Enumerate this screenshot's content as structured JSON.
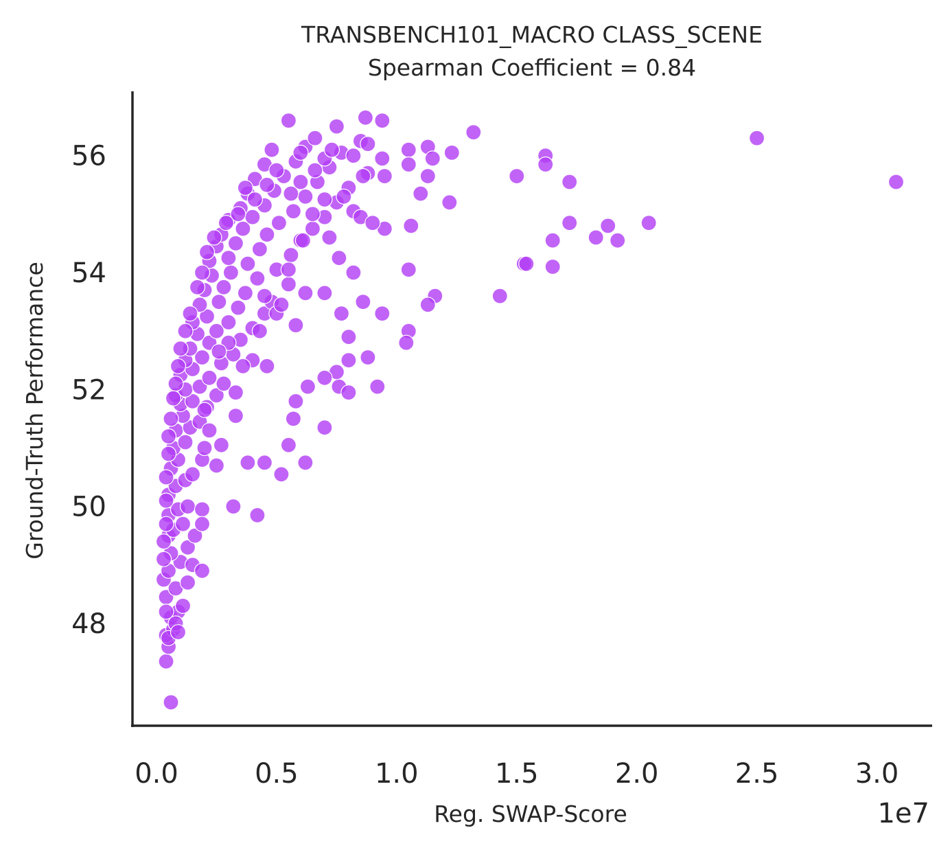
{
  "chart_data": {
    "type": "scatter",
    "title": "TRANSBENCH101_MACRO CLASS_SCENE",
    "subtitle": "Spearman Coefficient = 0.84",
    "xlabel": "Reg. SWAP-Score",
    "ylabel": "Ground-Truth Performance",
    "x_offset_label": "1e7",
    "x_ticks": [
      0.0,
      0.5,
      1.0,
      1.5,
      2.0,
      2.5,
      3.0
    ],
    "x_tick_labels": [
      "0.0",
      "0.5",
      "1.0",
      "1.5",
      "2.0",
      "2.5",
      "3.0"
    ],
    "y_ticks": [
      48,
      50,
      52,
      54,
      56
    ],
    "y_tick_labels": [
      "48",
      "50",
      "52",
      "54",
      "56"
    ],
    "xlim": [
      -0.1,
      3.23
    ],
    "ylim": [
      46.25,
      57.1
    ],
    "grid": false,
    "colors": {
      "point": "#b13cf5",
      "axis": "#262626"
    },
    "points": [
      [
        0.06,
        46.65
      ],
      [
        0.04,
        47.35
      ],
      [
        0.05,
        47.6
      ],
      [
        0.04,
        47.8
      ],
      [
        0.07,
        47.9
      ],
      [
        0.06,
        48.1
      ],
      [
        0.09,
        48.2
      ],
      [
        0.04,
        48.45
      ],
      [
        0.08,
        48.6
      ],
      [
        0.03,
        48.75
      ],
      [
        0.05,
        48.9
      ],
      [
        0.1,
        49.05
      ],
      [
        0.06,
        49.2
      ],
      [
        0.13,
        49.3
      ],
      [
        0.05,
        49.5
      ],
      [
        0.07,
        49.6
      ],
      [
        0.11,
        49.7
      ],
      [
        0.05,
        49.85
      ],
      [
        0.09,
        49.95
      ],
      [
        0.13,
        50.0
      ],
      [
        0.05,
        50.2
      ],
      [
        0.08,
        50.35
      ],
      [
        0.12,
        50.45
      ],
      [
        0.06,
        50.65
      ],
      [
        0.15,
        50.55
      ],
      [
        0.09,
        50.8
      ],
      [
        0.19,
        50.8
      ],
      [
        0.07,
        51.0
      ],
      [
        0.12,
        51.1
      ],
      [
        0.2,
        51.0
      ],
      [
        0.08,
        51.3
      ],
      [
        0.14,
        51.35
      ],
      [
        0.11,
        51.55
      ],
      [
        0.18,
        51.45
      ],
      [
        0.22,
        51.3
      ],
      [
        0.1,
        51.75
      ],
      [
        0.15,
        51.8
      ],
      [
        0.08,
        51.9
      ],
      [
        0.21,
        51.7
      ],
      [
        0.12,
        52.0
      ],
      [
        0.18,
        52.05
      ],
      [
        0.25,
        51.9
      ],
      [
        0.1,
        52.25
      ],
      [
        0.15,
        52.35
      ],
      [
        0.22,
        52.2
      ],
      [
        0.28,
        52.1
      ],
      [
        0.12,
        52.5
      ],
      [
        0.19,
        52.55
      ],
      [
        0.27,
        52.45
      ],
      [
        0.14,
        52.7
      ],
      [
        0.22,
        52.8
      ],
      [
        0.32,
        52.6
      ],
      [
        0.17,
        52.95
      ],
      [
        0.25,
        53.0
      ],
      [
        0.35,
        52.85
      ],
      [
        0.15,
        53.15
      ],
      [
        0.21,
        53.25
      ],
      [
        0.3,
        53.15
      ],
      [
        0.4,
        53.05
      ],
      [
        0.18,
        53.45
      ],
      [
        0.26,
        53.5
      ],
      [
        0.34,
        53.4
      ],
      [
        0.45,
        53.3
      ],
      [
        0.2,
        53.7
      ],
      [
        0.28,
        53.75
      ],
      [
        0.37,
        53.65
      ],
      [
        0.48,
        53.5
      ],
      [
        0.23,
        53.95
      ],
      [
        0.31,
        54.0
      ],
      [
        0.42,
        53.9
      ],
      [
        0.55,
        53.8
      ],
      [
        0.22,
        54.2
      ],
      [
        0.3,
        54.25
      ],
      [
        0.38,
        54.15
      ],
      [
        0.5,
        54.05
      ],
      [
        0.25,
        54.45
      ],
      [
        0.33,
        54.5
      ],
      [
        0.43,
        54.4
      ],
      [
        0.56,
        54.3
      ],
      [
        0.27,
        54.65
      ],
      [
        0.36,
        54.75
      ],
      [
        0.46,
        54.65
      ],
      [
        0.6,
        54.55
      ],
      [
        0.3,
        54.9
      ],
      [
        0.4,
        54.95
      ],
      [
        0.51,
        54.85
      ],
      [
        0.65,
        54.75
      ],
      [
        0.35,
        55.1
      ],
      [
        0.45,
        55.15
      ],
      [
        0.57,
        55.05
      ],
      [
        0.7,
        54.95
      ],
      [
        0.38,
        55.35
      ],
      [
        0.49,
        55.4
      ],
      [
        0.62,
        55.3
      ],
      [
        0.75,
        55.2
      ],
      [
        0.41,
        55.6
      ],
      [
        0.53,
        55.65
      ],
      [
        0.67,
        55.55
      ],
      [
        0.8,
        55.45
      ],
      [
        0.45,
        55.85
      ],
      [
        0.58,
        55.9
      ],
      [
        0.72,
        55.8
      ],
      [
        0.88,
        55.7
      ],
      [
        0.48,
        56.1
      ],
      [
        0.62,
        56.15
      ],
      [
        0.77,
        56.05
      ],
      [
        0.94,
        55.95
      ],
      [
        0.55,
        56.6
      ],
      [
        0.75,
        56.5
      ],
      [
        0.87,
        56.65
      ],
      [
        0.94,
        56.6
      ],
      [
        0.66,
        56.3
      ],
      [
        0.85,
        56.25
      ],
      [
        1.05,
        56.1
      ],
      [
        1.13,
        56.15
      ],
      [
        1.15,
        55.95
      ],
      [
        1.23,
        56.05
      ],
      [
        1.32,
        56.4
      ],
      [
        1.62,
        56.0
      ],
      [
        1.62,
        55.85
      ],
      [
        1.13,
        55.65
      ],
      [
        1.05,
        55.85
      ],
      [
        0.95,
        55.65
      ],
      [
        1.1,
        55.35
      ],
      [
        1.22,
        55.2
      ],
      [
        1.5,
        55.65
      ],
      [
        1.72,
        55.55
      ],
      [
        2.5,
        56.3
      ],
      [
        3.08,
        55.55
      ],
      [
        0.86,
        55.65
      ],
      [
        1.06,
        54.8
      ],
      [
        0.95,
        54.75
      ],
      [
        1.72,
        54.85
      ],
      [
        1.65,
        54.55
      ],
      [
        1.83,
        54.6
      ],
      [
        1.88,
        54.8
      ],
      [
        1.92,
        54.55
      ],
      [
        2.05,
        54.85
      ],
      [
        1.53,
        54.15
      ],
      [
        1.54,
        54.15
      ],
      [
        1.65,
        54.1
      ],
      [
        1.05,
        54.05
      ],
      [
        1.43,
        53.6
      ],
      [
        1.16,
        53.6
      ],
      [
        1.13,
        53.45
      ],
      [
        0.94,
        53.3
      ],
      [
        1.05,
        53.0
      ],
      [
        1.04,
        52.8
      ],
      [
        0.92,
        52.05
      ],
      [
        0.8,
        52.5
      ],
      [
        0.88,
        52.55
      ],
      [
        0.76,
        52.05
      ],
      [
        0.8,
        51.95
      ],
      [
        0.75,
        52.3
      ],
      [
        0.7,
        52.2
      ],
      [
        0.63,
        52.05
      ],
      [
        0.58,
        51.8
      ],
      [
        0.57,
        51.5
      ],
      [
        0.7,
        51.35
      ],
      [
        0.55,
        51.05
      ],
      [
        0.62,
        50.75
      ],
      [
        0.45,
        50.75
      ],
      [
        0.52,
        50.55
      ],
      [
        0.38,
        50.75
      ],
      [
        0.32,
        50.0
      ],
      [
        0.42,
        49.85
      ],
      [
        0.33,
        51.55
      ],
      [
        0.46,
        52.4
      ],
      [
        0.7,
        53.65
      ],
      [
        0.62,
        53.65
      ],
      [
        0.8,
        52.9
      ],
      [
        0.77,
        53.3
      ],
      [
        0.86,
        53.5
      ],
      [
        0.82,
        54.0
      ],
      [
        0.76,
        54.25
      ],
      [
        0.55,
        54.05
      ],
      [
        0.58,
        53.1
      ],
      [
        0.5,
        53.3
      ],
      [
        0.45,
        53.6
      ],
      [
        0.4,
        52.5
      ],
      [
        0.36,
        52.4
      ],
      [
        0.3,
        52.8
      ],
      [
        0.26,
        52.65
      ],
      [
        0.2,
        51.65
      ],
      [
        0.25,
        50.7
      ],
      [
        0.19,
        49.95
      ],
      [
        0.16,
        49.5
      ],
      [
        0.15,
        49.0
      ],
      [
        0.19,
        48.9
      ],
      [
        0.13,
        48.7
      ],
      [
        0.11,
        48.3
      ],
      [
        0.08,
        48.0
      ],
      [
        0.19,
        49.7
      ],
      [
        0.27,
        51.05
      ],
      [
        0.33,
        51.95
      ],
      [
        0.43,
        53.0
      ],
      [
        0.52,
        53.45
      ],
      [
        0.61,
        54.55
      ],
      [
        0.65,
        55.0
      ],
      [
        0.7,
        55.25
      ],
      [
        0.78,
        55.3
      ],
      [
        0.82,
        55.05
      ],
      [
        0.85,
        54.95
      ],
      [
        0.9,
        54.85
      ],
      [
        0.72,
        54.6
      ],
      [
        0.56,
        55.35
      ],
      [
        0.6,
        55.55
      ],
      [
        0.66,
        55.75
      ],
      [
        0.7,
        55.95
      ],
      [
        0.73,
        56.1
      ],
      [
        0.82,
        56.0
      ],
      [
        0.88,
        56.2
      ],
      [
        0.6,
        56.05
      ],
      [
        0.5,
        55.75
      ],
      [
        0.46,
        55.5
      ],
      [
        0.41,
        55.25
      ],
      [
        0.37,
        55.45
      ],
      [
        0.34,
        55.0
      ],
      [
        0.29,
        54.85
      ],
      [
        0.24,
        54.6
      ],
      [
        0.21,
        54.35
      ],
      [
        0.19,
        54.0
      ],
      [
        0.17,
        53.75
      ],
      [
        0.14,
        53.3
      ],
      [
        0.12,
        53.0
      ],
      [
        0.1,
        52.7
      ],
      [
        0.09,
        52.4
      ],
      [
        0.08,
        52.1
      ],
      [
        0.07,
        51.85
      ],
      [
        0.06,
        51.5
      ],
      [
        0.05,
        51.2
      ],
      [
        0.05,
        50.9
      ],
      [
        0.04,
        50.5
      ],
      [
        0.04,
        50.1
      ],
      [
        0.04,
        49.7
      ],
      [
        0.03,
        49.4
      ],
      [
        0.03,
        49.1
      ],
      [
        0.04,
        48.2
      ],
      [
        0.05,
        47.75
      ],
      [
        0.09,
        47.85
      ]
    ]
  }
}
